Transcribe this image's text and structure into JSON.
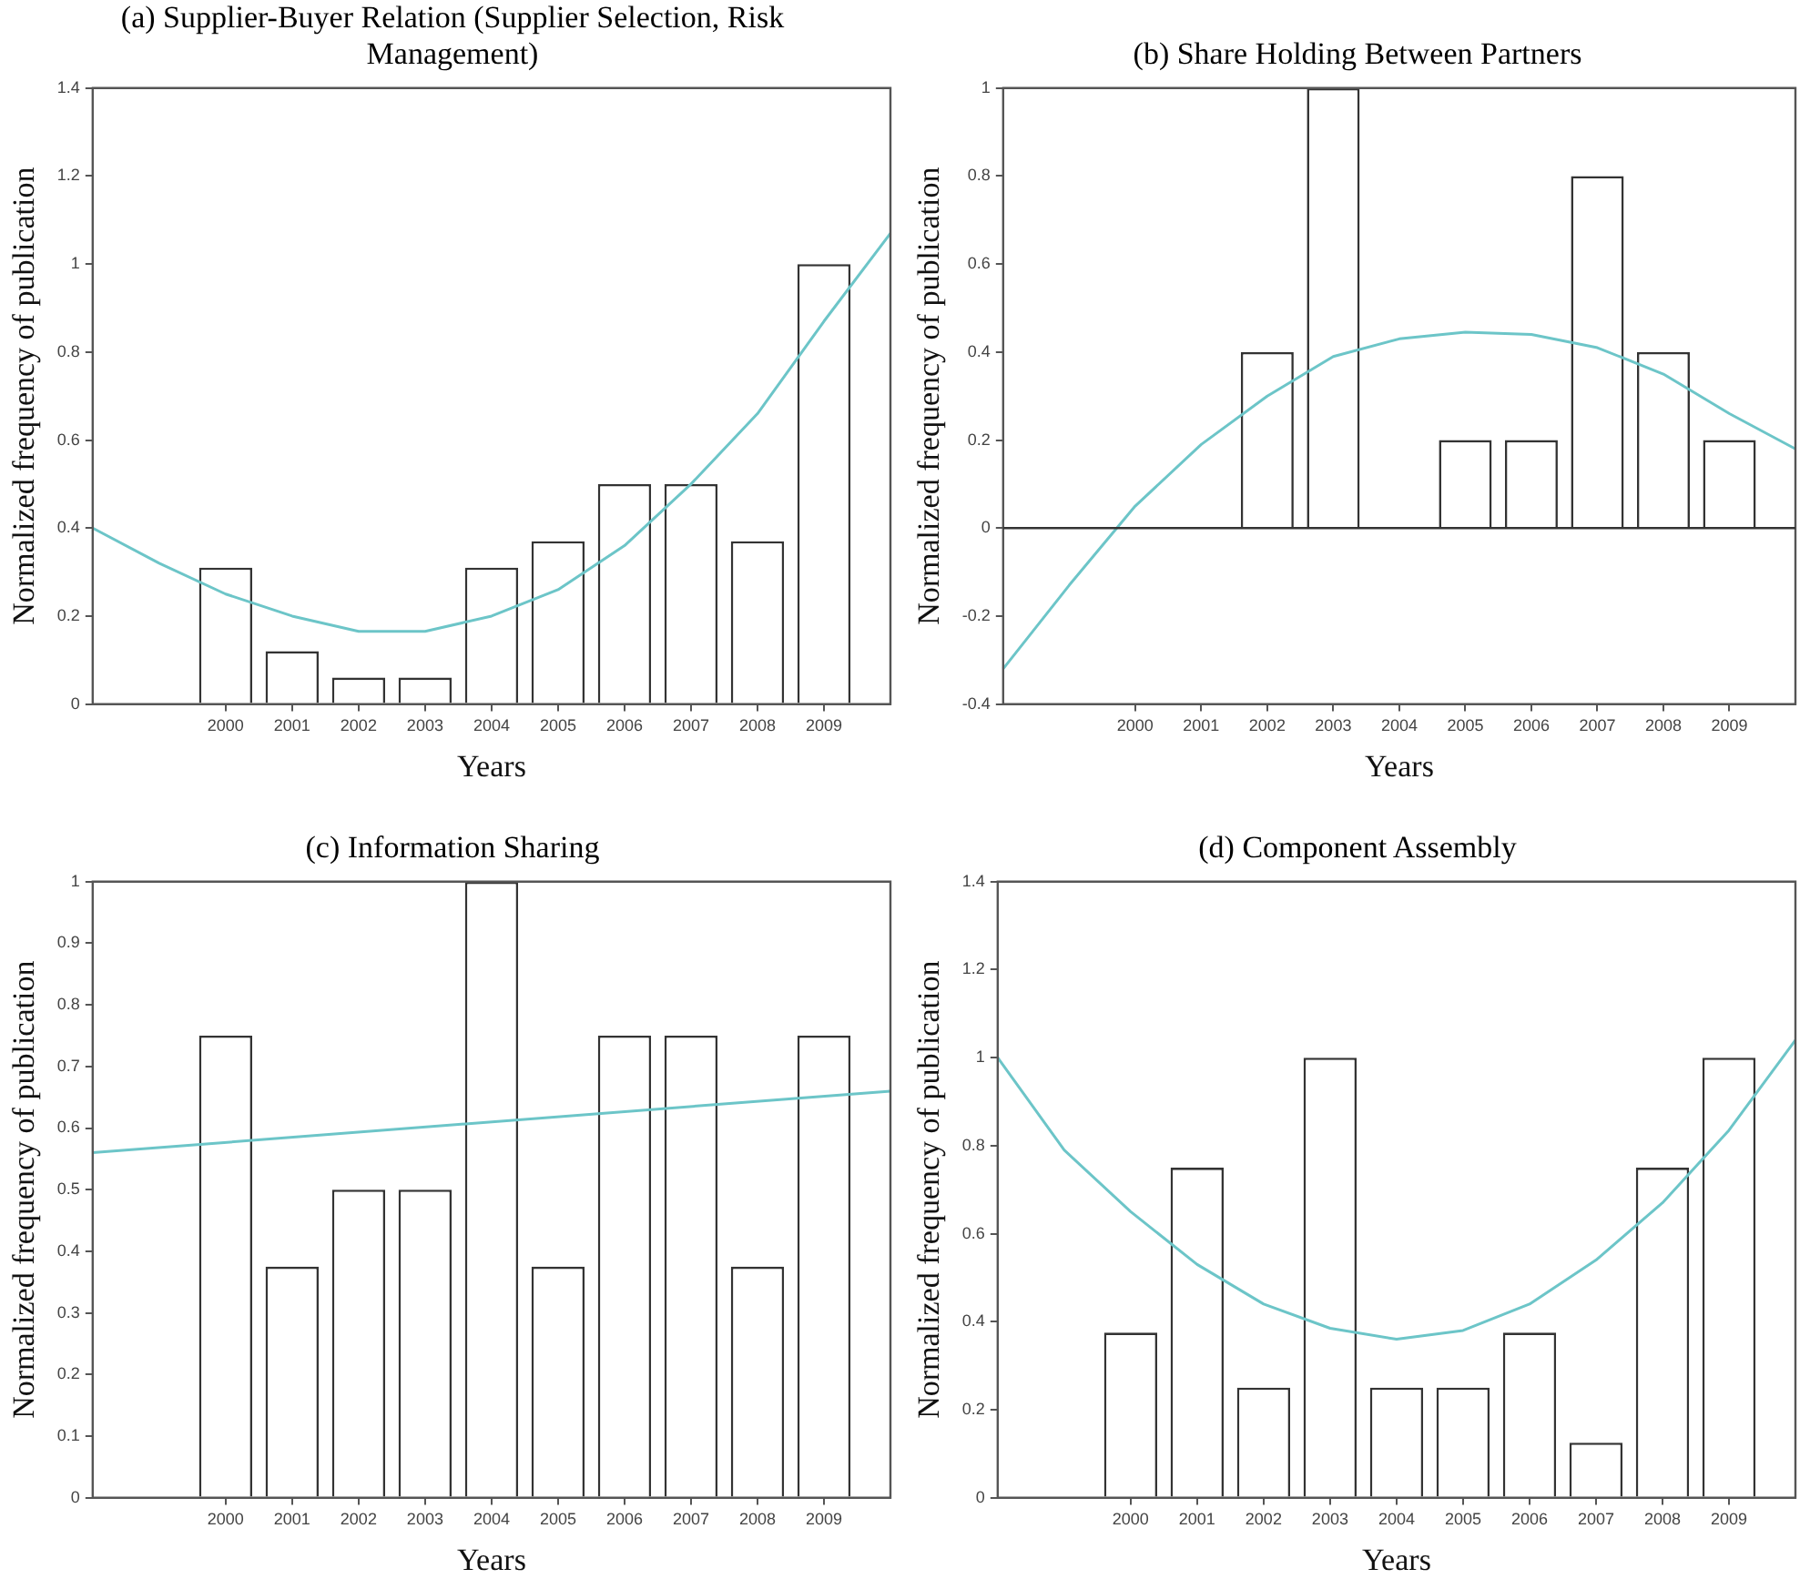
{
  "chart_data": [
    {
      "type": "bar",
      "title": "(a)  Supplier-Buyer Relation (Supplier Selection, Risk Management)",
      "xlabel": "Years",
      "ylabel": "Normalized frequency of publication",
      "x": [
        2000,
        2001,
        2002,
        2003,
        2004,
        2005,
        2006,
        2007,
        2008,
        2009
      ],
      "xlim": [
        1998,
        2010
      ],
      "xticks": [
        2000,
        2001,
        2002,
        2003,
        2004,
        2005,
        2006,
        2007,
        2008,
        2009
      ],
      "ylim": [
        0,
        1.4
      ],
      "yticks": [
        0,
        0.2,
        0.4,
        0.6,
        0.8,
        1,
        1.2,
        1.4
      ],
      "series": [
        {
          "type": "bar",
          "color": "#ffffff",
          "values": [
            0.31,
            0.12,
            0.06,
            0.06,
            0.31,
            0.37,
            0.5,
            0.5,
            0.37,
            1
          ]
        },
        {
          "type": "line",
          "color": "#6cc5c8",
          "x": [
            1998,
            1999,
            2000,
            2001,
            2002,
            2003,
            2004,
            2005,
            2006,
            2007,
            2008,
            2009,
            2010
          ],
          "values": [
            0.4,
            0.32,
            0.25,
            0.2,
            0.165,
            0.165,
            0.2,
            0.26,
            0.36,
            0.5,
            0.66,
            0.87,
            1.07
          ]
        }
      ]
    },
    {
      "type": "bar",
      "title": "(b)  Share Holding Between Partners",
      "xlabel": "Years",
      "ylabel": "Normalized frequency of publication",
      "x": [
        2000,
        2001,
        2002,
        2003,
        2004,
        2005,
        2006,
        2007,
        2008,
        2009
      ],
      "xlim": [
        1998,
        2010
      ],
      "xticks": [
        2000,
        2001,
        2002,
        2003,
        2004,
        2005,
        2006,
        2007,
        2008,
        2009
      ],
      "ylim": [
        -0.4,
        1
      ],
      "yticks": [
        -0.4,
        -0.2,
        0,
        0.2,
        0.4,
        0.6,
        0.8,
        1
      ],
      "ref_lines": [
        {
          "axis": "y",
          "value": 0,
          "color": "#333333"
        }
      ],
      "series": [
        {
          "type": "bar",
          "color": "#ffffff",
          "values": [
            0,
            0,
            0.4,
            1,
            0,
            0.2,
            0.2,
            0.8,
            0.4,
            0.2
          ]
        },
        {
          "type": "line",
          "color": "#6cc5c8",
          "x": [
            1998,
            1999,
            2000,
            2001,
            2002,
            2003,
            2004,
            2005,
            2006,
            2007,
            2008,
            2009,
            2010
          ],
          "values": [
            -0.32,
            -0.13,
            0.05,
            0.19,
            0.3,
            0.39,
            0.43,
            0.445,
            0.44,
            0.41,
            0.35,
            0.26,
            0.18
          ]
        }
      ]
    },
    {
      "type": "bar",
      "title": "(c)  Information Sharing",
      "xlabel": "Years",
      "ylabel": "Normalized frequency of publication",
      "x": [
        2000,
        2001,
        2002,
        2003,
        2004,
        2005,
        2006,
        2007,
        2008,
        2009
      ],
      "xlim": [
        1998,
        2010
      ],
      "xticks": [
        2000,
        2001,
        2002,
        2003,
        2004,
        2005,
        2006,
        2007,
        2008,
        2009
      ],
      "ylim": [
        0,
        1
      ],
      "yticks": [
        0,
        0.1,
        0.2,
        0.3,
        0.4,
        0.5,
        0.6,
        0.7,
        0.8,
        0.9,
        1
      ],
      "series": [
        {
          "type": "bar",
          "color": "#ffffff",
          "values": [
            0.75,
            0.375,
            0.5,
            0.5,
            1,
            0.375,
            0.75,
            0.75,
            0.375,
            0.75
          ]
        },
        {
          "type": "line",
          "color": "#6cc5c8",
          "x": [
            1998,
            2010
          ],
          "values": [
            0.56,
            0.66
          ]
        }
      ]
    },
    {
      "type": "bar",
      "title": "(d)  Component Assembly",
      "xlabel": "Years",
      "ylabel": "Normalized frequency of publication",
      "x": [
        2000,
        2001,
        2002,
        2003,
        2004,
        2005,
        2006,
        2007,
        2008,
        2009
      ],
      "xlim": [
        1998,
        2010
      ],
      "xticks": [
        2000,
        2001,
        2002,
        2003,
        2004,
        2005,
        2006,
        2007,
        2008,
        2009
      ],
      "ylim": [
        0,
        1.4
      ],
      "yticks": [
        0,
        0.2,
        0.4,
        0.6,
        0.8,
        1,
        1.2,
        1.4
      ],
      "series": [
        {
          "type": "bar",
          "color": "#ffffff",
          "values": [
            0.375,
            0.75,
            0.25,
            1,
            0.25,
            0.25,
            0.375,
            0.125,
            0.75,
            1
          ]
        },
        {
          "type": "line",
          "color": "#6cc5c8",
          "x": [
            1998,
            1999,
            2000,
            2001,
            2002,
            2003,
            2004,
            2005,
            2006,
            2007,
            2008,
            2009,
            2010
          ],
          "values": [
            1.0,
            0.79,
            0.65,
            0.53,
            0.44,
            0.385,
            0.36,
            0.38,
            0.44,
            0.54,
            0.67,
            0.835,
            1.04
          ]
        }
      ]
    }
  ]
}
